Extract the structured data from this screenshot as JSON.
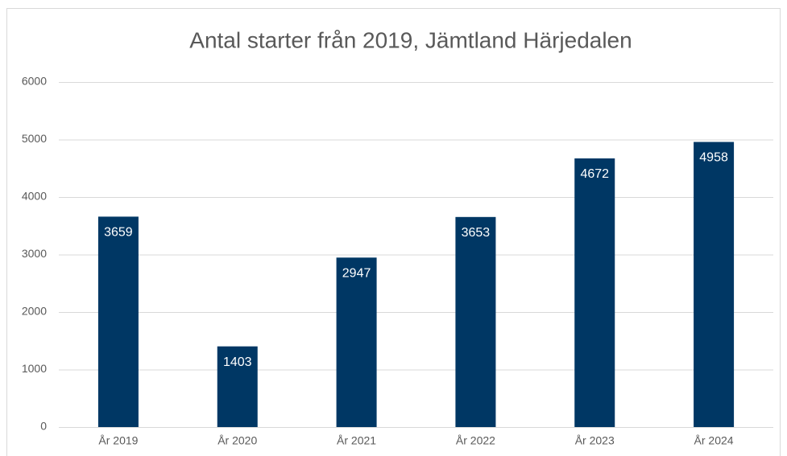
{
  "chart_data": {
    "type": "bar",
    "title": "Antal starter från 2019, Jämtland Härjedalen",
    "categories": [
      "År 2019",
      "År 2020",
      "År 2021",
      "År 2022",
      "År 2023",
      "År 2024"
    ],
    "values": [
      3659,
      1403,
      2947,
      3653,
      4672,
      4958
    ],
    "color": "#003764",
    "ylim": [
      0,
      6000
    ],
    "yticks": [
      0,
      1000,
      2000,
      3000,
      4000,
      5000,
      6000
    ],
    "grid": true
  }
}
